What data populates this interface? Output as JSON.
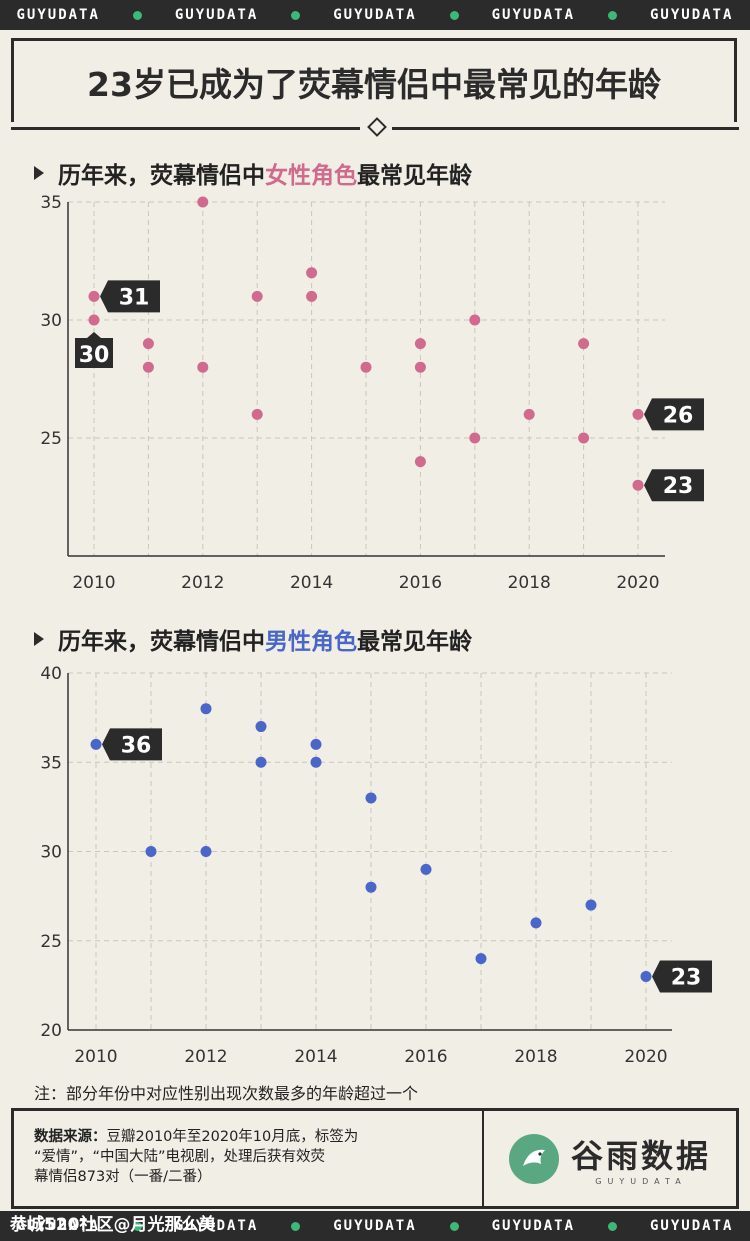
{
  "banner": {
    "text": "GUYUDATA",
    "dot_color": "#3cb878"
  },
  "title": "23岁已成为了荧幕情侣中最常见的年龄",
  "chart_female_title": {
    "pre": "历年来，荧幕情侣中",
    "highlight": "女性角色",
    "post": "最常见年龄",
    "highlight_color": "#d06a8e"
  },
  "chart_male_title": {
    "pre": "历年来，荧幕情侣中",
    "highlight": "男性角色",
    "post": "最常见年龄",
    "highlight_color": "#4a66c9"
  },
  "chart_data": [
    {
      "type": "scatter",
      "color": "#d06a8e",
      "x_ticks": [
        "2010",
        "2012",
        "2014",
        "2016",
        "2018",
        "2020"
      ],
      "y_ticks": [
        "25",
        "30",
        "35"
      ],
      "xlim": [
        2010,
        2020
      ],
      "ylim": [
        20,
        35
      ],
      "points": [
        [
          2010,
          31
        ],
        [
          2010,
          30
        ],
        [
          2011,
          29
        ],
        [
          2011,
          28
        ],
        [
          2012,
          35
        ],
        [
          2012,
          28
        ],
        [
          2013,
          31
        ],
        [
          2013,
          26
        ],
        [
          2014,
          32
        ],
        [
          2014,
          31
        ],
        [
          2015,
          28
        ],
        [
          2016,
          29
        ],
        [
          2016,
          28
        ],
        [
          2016,
          24
        ],
        [
          2017,
          30
        ],
        [
          2017,
          25
        ],
        [
          2018,
          26
        ],
        [
          2019,
          29
        ],
        [
          2019,
          25
        ],
        [
          2020,
          26
        ],
        [
          2020,
          23
        ]
      ],
      "labels": [
        {
          "x": 2010,
          "y": 31,
          "text": "31",
          "side": "right"
        },
        {
          "x": 2010,
          "y": 30,
          "text": "30",
          "side": "below"
        },
        {
          "x": 2020,
          "y": 26,
          "text": "26",
          "side": "right"
        },
        {
          "x": 2020,
          "y": 23,
          "text": "23",
          "side": "right"
        }
      ]
    },
    {
      "type": "scatter",
      "color": "#4a66c9",
      "x_ticks": [
        "2010",
        "2012",
        "2014",
        "2016",
        "2018",
        "2020"
      ],
      "y_ticks": [
        "20",
        "25",
        "30",
        "35",
        "40"
      ],
      "xlim": [
        2010,
        2020
      ],
      "ylim": [
        20,
        40
      ],
      "points": [
        [
          2010,
          36
        ],
        [
          2011,
          30
        ],
        [
          2012,
          38
        ],
        [
          2012,
          30
        ],
        [
          2013,
          37
        ],
        [
          2013,
          35
        ],
        [
          2014,
          36
        ],
        [
          2014,
          35
        ],
        [
          2015,
          33
        ],
        [
          2015,
          28
        ],
        [
          2016,
          29
        ],
        [
          2017,
          24
        ],
        [
          2018,
          26
        ],
        [
          2019,
          27
        ],
        [
          2020,
          23
        ]
      ],
      "labels": [
        {
          "x": 2010,
          "y": 36,
          "text": "36",
          "side": "right"
        },
        {
          "x": 2020,
          "y": 23,
          "text": "23",
          "side": "right"
        }
      ]
    }
  ],
  "note": "注：部分年份中对应性别出现次数最多的年龄超过一个",
  "source": {
    "label": "数据来源：",
    "line1": "豆瓣2010年至2020年10月底，标签为",
    "line2": "“爱情”，“中国大陆”电视剧，处理后获有效荧",
    "line3": "幕情侣873对（一番/二番）"
  },
  "brand": {
    "name": "谷雨数据",
    "sub": "GUYUDATA"
  },
  "watermark": "恭城520社区@月光那么美"
}
